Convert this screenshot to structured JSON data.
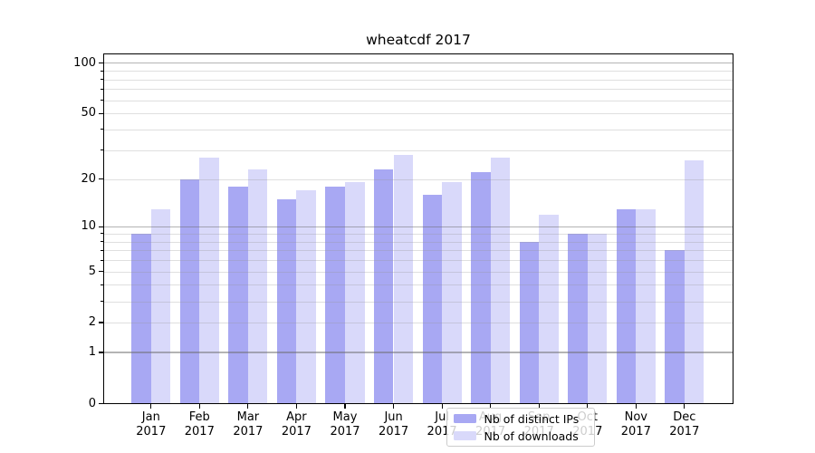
{
  "title": "wheatcdf 2017",
  "chart_data": {
    "type": "bar",
    "title": "wheatcdf 2017",
    "categories": [
      "Jan 2017",
      "Feb 2017",
      "Mar 2017",
      "Apr 2017",
      "May 2017",
      "Jun 2017",
      "Jul 2017",
      "Aug 2017",
      "Sep 2017",
      "Oct 2017",
      "Nov 2017",
      "Dec 2017"
    ],
    "x_tick_months": [
      "Jan",
      "Feb",
      "Mar",
      "Apr",
      "May",
      "Jun",
      "Jul",
      "Aug",
      "Sep",
      "Oct",
      "Nov",
      "Dec"
    ],
    "x_tick_year": "2017",
    "series": [
      {
        "name": "Nb of distinct IPs",
        "color": "#a8a8f3",
        "values": [
          9,
          20,
          18,
          15,
          18,
          23,
          16,
          22,
          8,
          9,
          13,
          7
        ]
      },
      {
        "name": "Nb of downloads",
        "color": "#d9d9fa",
        "values": [
          13,
          27,
          23,
          17,
          19,
          28,
          19,
          27,
          12,
          9,
          13,
          26
        ]
      }
    ],
    "xlabel": "",
    "ylabel": "",
    "yscale": "log10(1+v)",
    "ylim": [
      0,
      115
    ],
    "y_labeled_ticks": [
      100,
      50,
      20,
      10,
      5,
      2,
      1,
      0
    ],
    "y_major_gridlines": [
      1,
      10,
      100
    ],
    "y_minor_gridlines": [
      2,
      3,
      4,
      5,
      6,
      7,
      8,
      9,
      20,
      30,
      40,
      50,
      60,
      70,
      80,
      90
    ],
    "y_unlabeled_minor_ticks": [
      3,
      4,
      6,
      7,
      8,
      9,
      30,
      40,
      60,
      70,
      80,
      90
    ],
    "grid": "horizontal, major + minor, drawn over bars",
    "legend_position": "lower center"
  },
  "legend": {
    "items": [
      {
        "label": "Nb of distinct IPs"
      },
      {
        "label": "Nb of downloads"
      }
    ]
  },
  "colors": {
    "bar_distinct_ips": "#a8a8f3",
    "bar_downloads": "#d9d9fa",
    "major_grid": "#b0b0b0",
    "minor_grid": "#e3e3e3",
    "frame": "#000000",
    "legend_border": "#cccccc",
    "text": "#000000"
  }
}
